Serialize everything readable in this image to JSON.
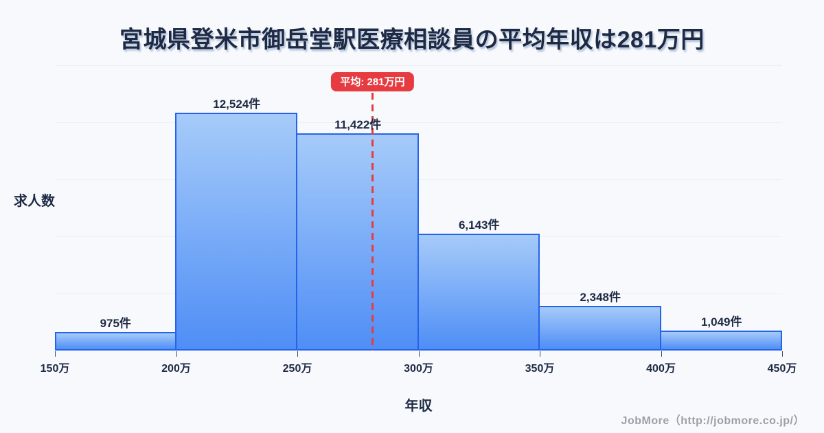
{
  "title": "宮城県登米市御岳堂駅医療相談員の平均年収は281万円",
  "chart_data": {
    "type": "bar",
    "subtype": "histogram",
    "title": "宮城県登米市御岳堂駅医療相談員の平均年収は281万円",
    "xlabel": "年収",
    "ylabel": "求人数",
    "bin_edges": [
      150,
      200,
      250,
      300,
      350,
      400,
      450
    ],
    "bin_edge_labels": [
      "150万",
      "200万",
      "250万",
      "300万",
      "350万",
      "400万",
      "450万"
    ],
    "values": [
      975,
      12524,
      11422,
      6143,
      2348,
      1049
    ],
    "value_labels": [
      "975件",
      "12,524件",
      "11,422件",
      "6,143件",
      "2,348件",
      "1,049件"
    ],
    "ylim": [
      0,
      15000
    ],
    "grid_interval": 3000,
    "grid": true,
    "legend": false,
    "average_line": {
      "value": 281,
      "label": "平均: 281万円"
    }
  },
  "footer": {
    "credit": "JobMore（http://jobmore.co.jp/）"
  },
  "colors": {
    "background": "#f7f9fc",
    "ink": "#1e2a44",
    "bar_fill_top": "#a6cbf9",
    "bar_fill_bottom": "#4f8ef6",
    "bar_border": "#2563eb",
    "average_red": "#e63c41",
    "gridline": "#e9eef6",
    "footer_gray": "#9ba0a8"
  }
}
